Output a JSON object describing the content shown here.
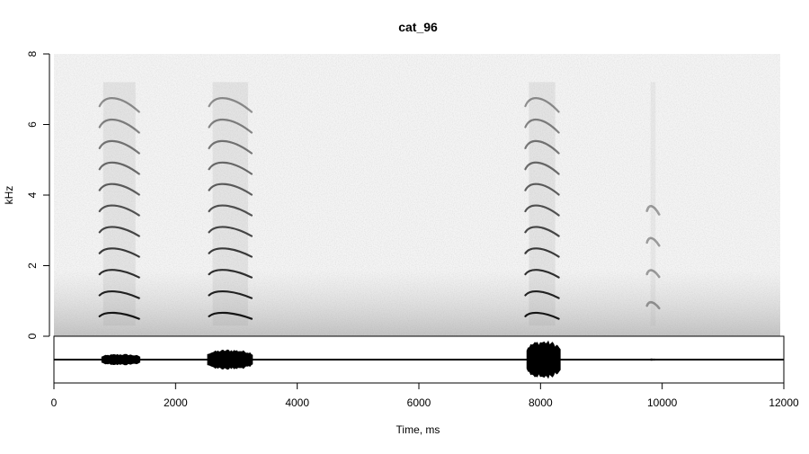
{
  "chart_data": {
    "type": "spectrogram",
    "title": "cat_96",
    "xlabel": "Time, ms",
    "ylabel": "kHz",
    "xlim": [
      0,
      12000
    ],
    "ylim": [
      0,
      8
    ],
    "x_ticks": [
      0,
      2000,
      4000,
      6000,
      8000,
      10000,
      12000
    ],
    "y_ticks": [
      0,
      2,
      4,
      6,
      8
    ],
    "calls": [
      {
        "start": 750,
        "end": 1400,
        "f0_khz": 0.6,
        "harmonics": 11
      },
      {
        "start": 2550,
        "end": 3250,
        "f0_khz": 0.6,
        "harmonics": 11
      },
      {
        "start": 7750,
        "end": 8300,
        "f0_khz": 0.6,
        "harmonics": 11
      },
      {
        "start": 9750,
        "end": 9950,
        "f0_khz": 0.9,
        "harmonics": 4
      }
    ],
    "oscillogram_bursts": [
      {
        "start": 780,
        "end": 1420,
        "amplitude": 0.25
      },
      {
        "start": 2520,
        "end": 3270,
        "amplitude": 0.45
      },
      {
        "start": 7770,
        "end": 8330,
        "amplitude": 0.85
      },
      {
        "start": 9780,
        "end": 9900,
        "amplitude": 0.05
      }
    ],
    "colors": {
      "background": "#f4f4f4",
      "harmonic": "#000000",
      "waveform": "#000000"
    }
  }
}
